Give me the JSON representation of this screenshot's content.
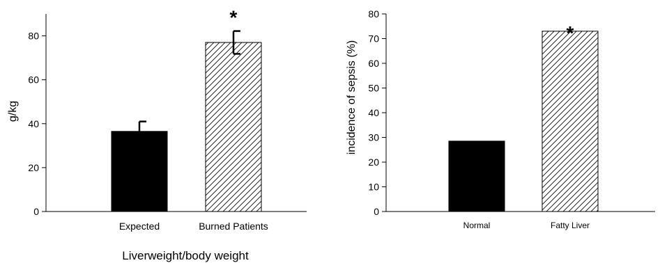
{
  "chart_data": [
    {
      "type": "bar",
      "categories": [
        "Expected",
        "Burned Patients"
      ],
      "values": [
        36.5,
        77
      ],
      "error": [
        4.5,
        5.2
      ],
      "fills": [
        "solid",
        "hatched"
      ],
      "significance": [
        "",
        "*"
      ],
      "title": "",
      "xlabel": "Liverweight/body weight",
      "ylabel": "g/kg",
      "ylim": [
        0,
        90
      ],
      "yticks": [
        0,
        20,
        40,
        60,
        80
      ],
      "grid": false
    },
    {
      "type": "bar",
      "categories": [
        "Normal",
        "Fatty Liver"
      ],
      "values": [
        28.5,
        73
      ],
      "fills": [
        "solid",
        "hatched"
      ],
      "significance": [
        "",
        "*"
      ],
      "title": "",
      "xlabel": "",
      "ylabel": "incidence of sepsis (%)",
      "ylim": [
        0,
        80
      ],
      "yticks": [
        0,
        10,
        20,
        30,
        40,
        50,
        60,
        70,
        80
      ],
      "grid": false
    }
  ],
  "colors": {
    "solid_bar": "#000000",
    "hatched_bar_fill": "#ffffff",
    "hatch_line": "#000000",
    "axis": "#000000"
  }
}
